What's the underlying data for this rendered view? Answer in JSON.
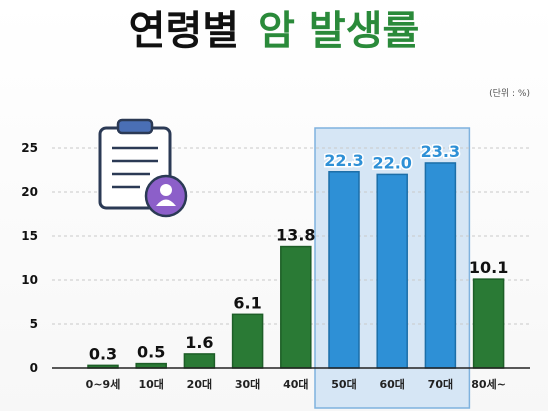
{
  "title": {
    "part1": "연령별",
    "part2": "암 발생률"
  },
  "unit_note": "(단위 : %)",
  "colors": {
    "green": "#2a7a35",
    "green_dark": "#1d5e27",
    "blue": "#2e90d6",
    "blue_dark": "#1c6ea8",
    "highlight_bg": "#d6e6f5",
    "highlight_border": "#7fb2de",
    "title_green": "#2a8a3a",
    "label_dark": "#111111",
    "label_blue": "#2e90d6"
  },
  "icon": "clipboard-person-icon",
  "chart_data": {
    "type": "bar",
    "title": "연령별 암 발생률",
    "unit": "(단위 : %)",
    "categories": [
      "0~9세",
      "10대",
      "20대",
      "30대",
      "40대",
      "50대",
      "60대",
      "70대",
      "80세~"
    ],
    "values": [
      0.3,
      0.5,
      1.6,
      6.1,
      13.8,
      22.3,
      22.0,
      23.3,
      10.1
    ],
    "value_labels": [
      "0.3",
      "0.5",
      "1.6",
      "6.1",
      "13.8",
      "22.3",
      "22.0",
      "23.3",
      "10.1"
    ],
    "highlighted": [
      "50대",
      "60대",
      "70대"
    ],
    "yticks": [
      0,
      5,
      10,
      15,
      20,
      25
    ],
    "ylim": [
      0,
      25
    ],
    "grid": true
  }
}
